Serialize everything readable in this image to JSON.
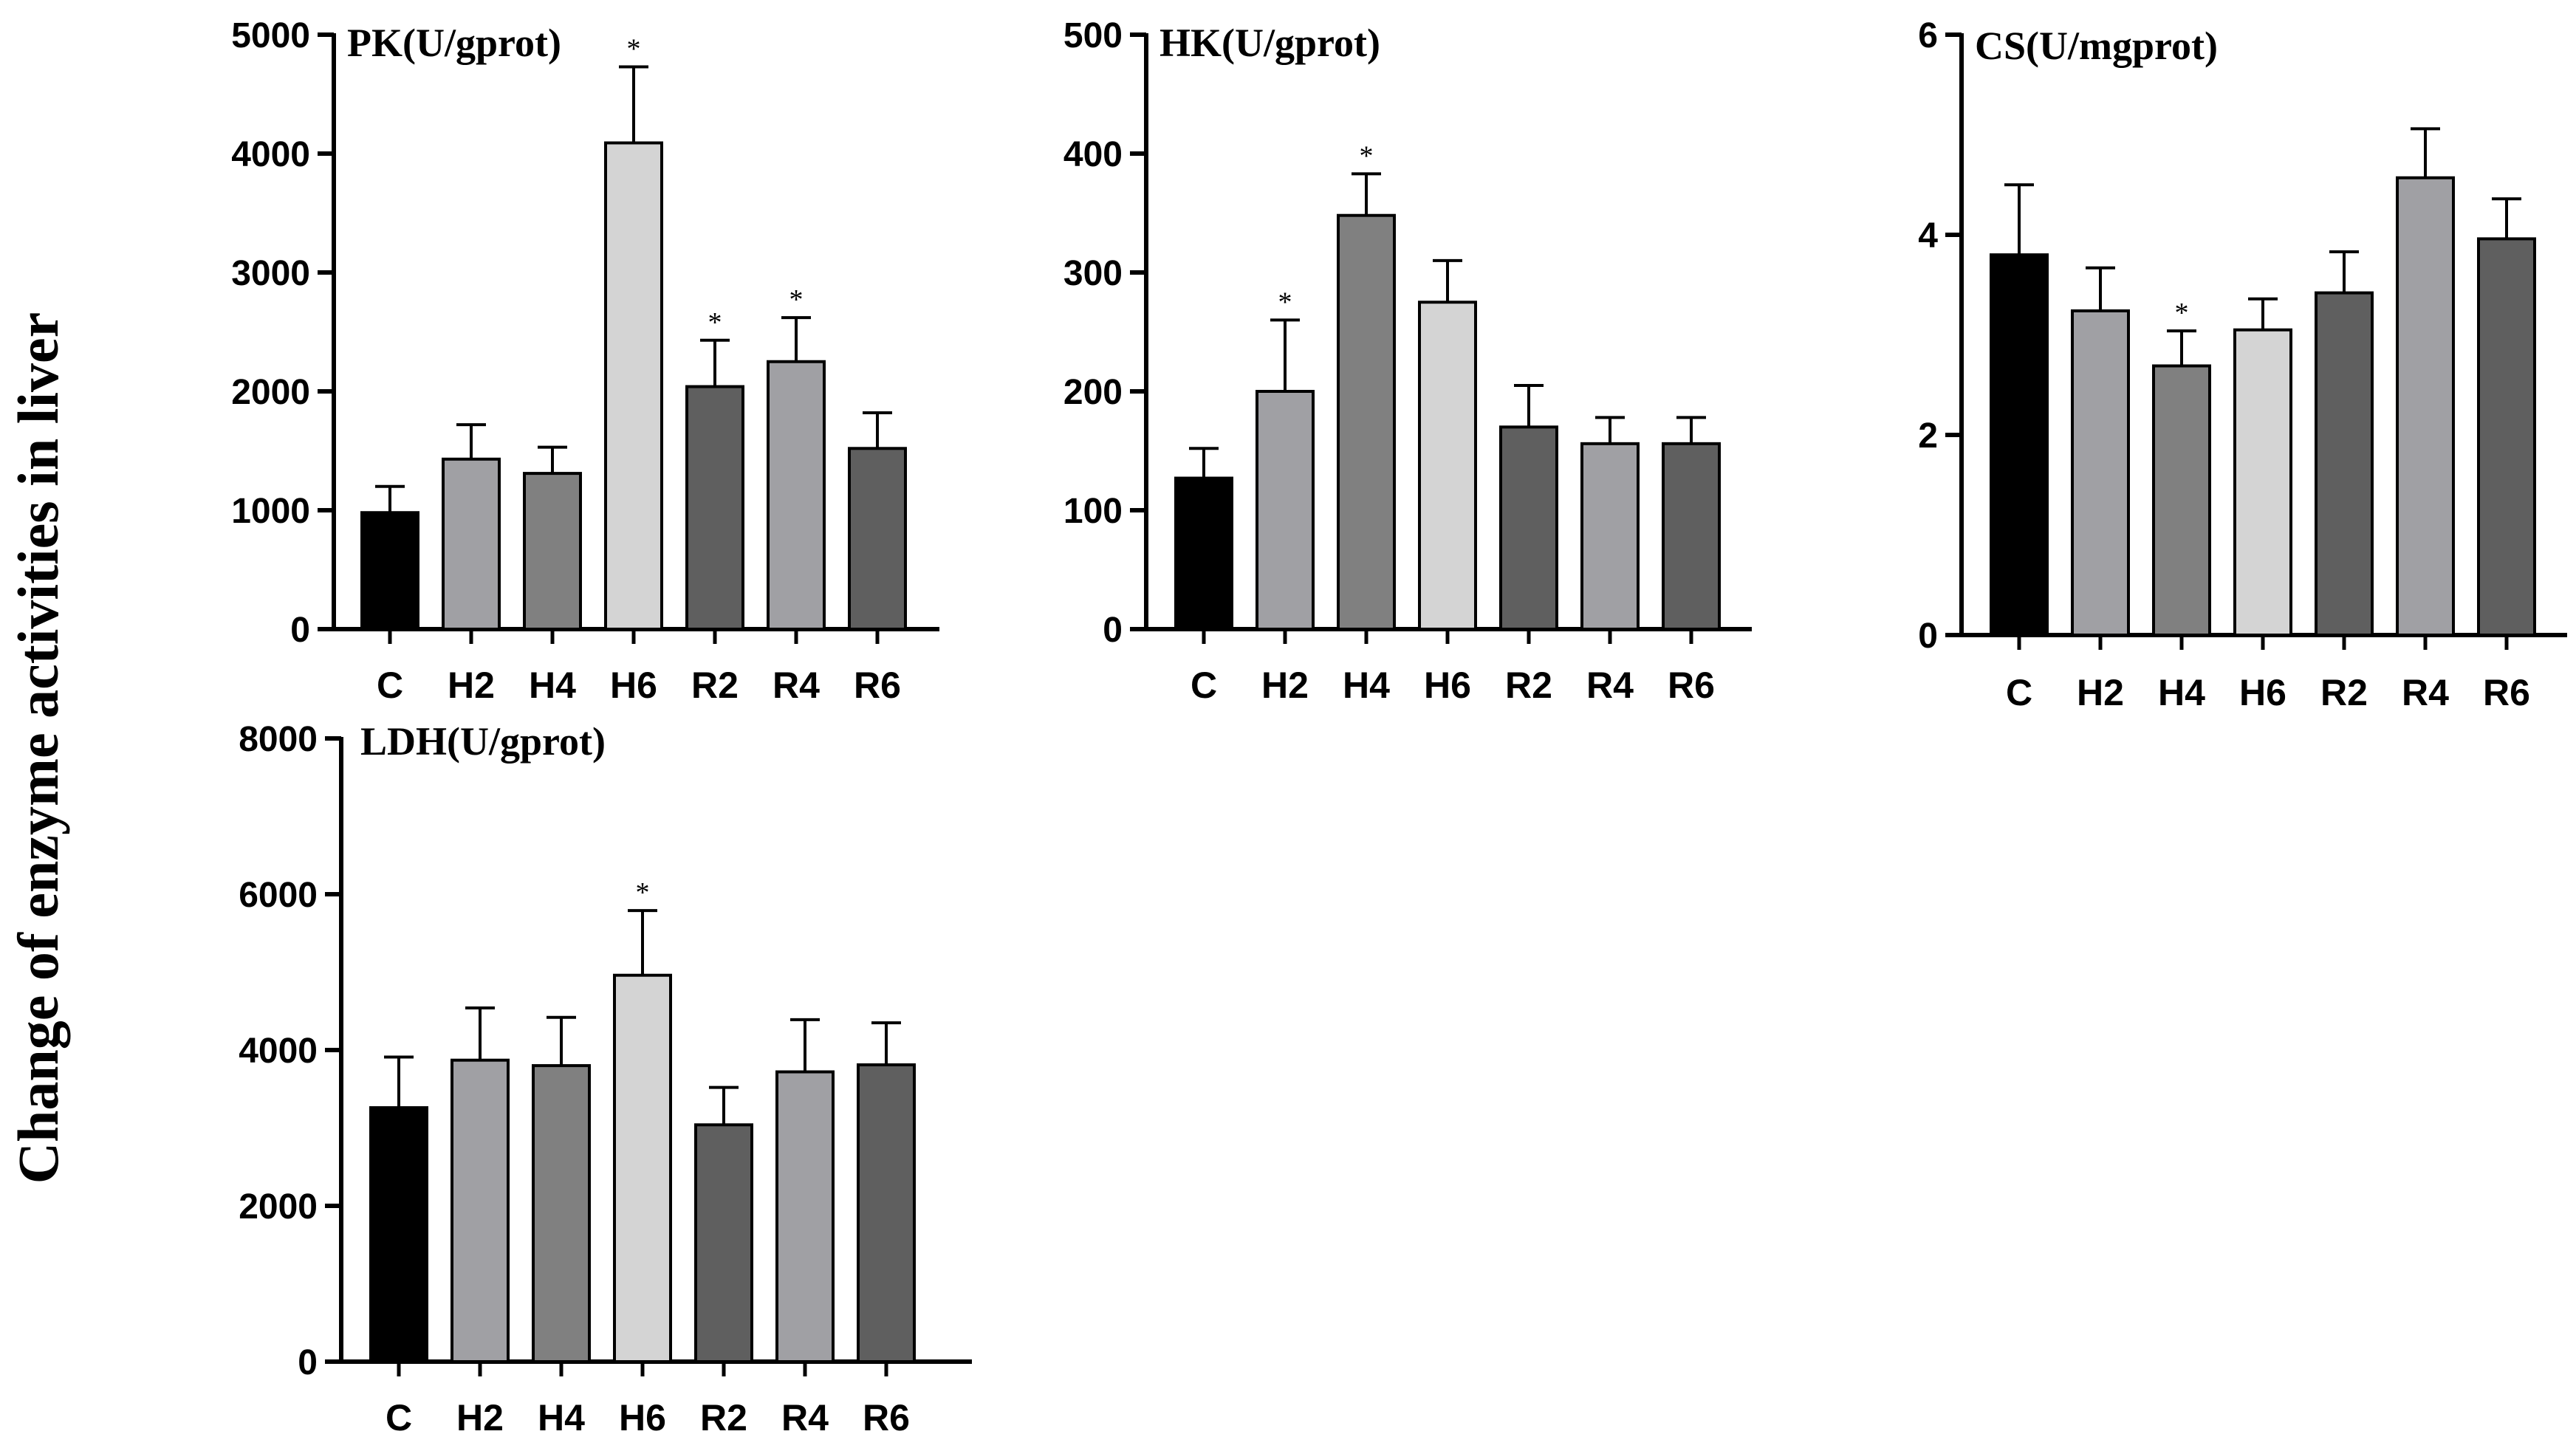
{
  "figure": {
    "ylabel": "Change of enzyme activities in liver"
  },
  "chart_data": [
    {
      "type": "bar",
      "title": "PK(U/gprot)",
      "categories": [
        "C",
        "H2",
        "H4",
        "H6",
        "R2",
        "R4",
        "R6"
      ],
      "values": [
        980,
        1430,
        1310,
        4090,
        2040,
        2250,
        1520
      ],
      "errors": [
        220,
        290,
        220,
        640,
        390,
        370,
        300
      ],
      "significance": [
        "",
        "",
        "",
        "*",
        "*",
        "*",
        ""
      ],
      "yticks": [
        0,
        1000,
        2000,
        3000,
        4000,
        5000
      ],
      "ytick_labels": [
        "0",
        "1000",
        "2000",
        "3000",
        "4000",
        "5000"
      ],
      "ylim": [
        0,
        5000
      ],
      "colors": [
        "#000000",
        "#a0a0a4",
        "#808080",
        "#d4d4d4",
        "#5f5f5f",
        "#a0a0a4",
        "#5f5f5f"
      ]
    },
    {
      "type": "bar",
      "title": "HK(U/gprot)",
      "categories": [
        "C",
        "H2",
        "H4",
        "H6",
        "R2",
        "R4",
        "R6"
      ],
      "values": [
        127,
        200,
        348,
        275,
        170,
        156,
        156
      ],
      "errors": [
        25,
        60,
        35,
        35,
        35,
        22,
        22
      ],
      "significance": [
        "",
        "*",
        "*",
        "",
        "",
        "",
        ""
      ],
      "yticks": [
        0,
        100,
        200,
        300,
        400,
        500
      ],
      "ytick_labels": [
        "0",
        "100",
        "200",
        "300",
        "400",
        "500"
      ],
      "ylim": [
        0,
        500
      ],
      "colors": [
        "#000000",
        "#a0a0a4",
        "#808080",
        "#d4d4d4",
        "#5f5f5f",
        "#a0a0a4",
        "#5f5f5f"
      ]
    },
    {
      "type": "bar",
      "title": "CS(U/mgprot)",
      "categories": [
        "C",
        "H2",
        "H4",
        "H6",
        "R2",
        "R4",
        "R6"
      ],
      "values": [
        3.8,
        3.24,
        2.69,
        3.05,
        3.42,
        4.57,
        3.96
      ],
      "errors": [
        0.7,
        0.43,
        0.35,
        0.31,
        0.41,
        0.49,
        0.4
      ],
      "significance": [
        "",
        "",
        "*",
        "",
        "",
        "",
        ""
      ],
      "yticks": [
        0,
        2,
        4,
        6
      ],
      "ytick_labels": [
        "0",
        "2",
        "4",
        "6"
      ],
      "ylim": [
        0,
        6
      ],
      "colors": [
        "#000000",
        "#a0a0a4",
        "#808080",
        "#d4d4d4",
        "#5f5f5f",
        "#a0a0a4",
        "#5f5f5f"
      ]
    },
    {
      "type": "bar",
      "title": "LDH(U/gprot)",
      "categories": [
        "C",
        "H2",
        "H4",
        "H6",
        "R2",
        "R4",
        "R6"
      ],
      "values": [
        3260,
        3870,
        3800,
        4960,
        3040,
        3720,
        3810
      ],
      "errors": [
        650,
        670,
        620,
        830,
        480,
        670,
        540
      ],
      "significance": [
        "",
        "",
        "",
        "*",
        "",
        "",
        ""
      ],
      "yticks": [
        0,
        2000,
        4000,
        6000,
        8000
      ],
      "ytick_labels": [
        "0",
        "2000",
        "4000",
        "6000",
        "8000"
      ],
      "ylim": [
        0,
        8000
      ],
      "colors": [
        "#000000",
        "#a0a0a4",
        "#808080",
        "#d4d4d4",
        "#5f5f5f",
        "#a0a0a4",
        "#5f5f5f"
      ]
    }
  ]
}
